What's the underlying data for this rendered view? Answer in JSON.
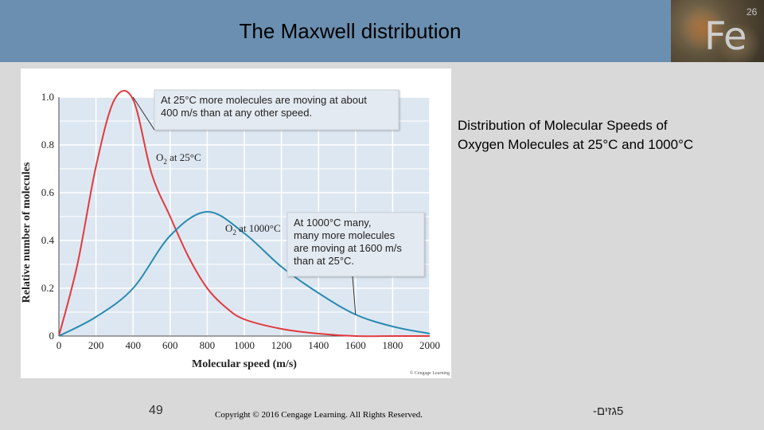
{
  "slide": {
    "title": "The Maxwell distribution",
    "caption_line1": "Distribution of Molecular Speeds of",
    "caption_line2": "Oxygen Molecules at 25°C and 1000°C",
    "page_number": "49",
    "copyright": "Copyright © 2016 Cengage Learning. All Rights Reserved.",
    "footer_hebrew": "5גזים-",
    "logo_symbol": "Fe",
    "logo_number": "26"
  },
  "colors": {
    "header": "#6a8fb0",
    "series_25": "#e03a3e",
    "series_1000": "#2a8ab0",
    "plot_bg": "#dde7f1",
    "grid": "#ffffff"
  },
  "chart_data": {
    "type": "line",
    "xlabel": "Molecular speed (m/s)",
    "ylabel": "Relative number of molecules",
    "xlim": [
      0,
      2000
    ],
    "ylim": [
      0,
      1.0
    ],
    "xticks": [
      "0",
      "200",
      "400",
      "600",
      "800",
      "1000",
      "1200",
      "1400",
      "1600",
      "1800",
      "2000"
    ],
    "yticks": [
      "0",
      "0.2",
      "0.4",
      "0.6",
      "0.8",
      "1.0"
    ],
    "grid": true,
    "credit": "© Cengage Learning",
    "series": [
      {
        "name_main": "O",
        "name_sub": "2",
        "name_rest": " at 25°C",
        "x": [
          0,
          100,
          200,
          300,
          400,
          500,
          600,
          700,
          800,
          900,
          1000,
          1200,
          1400,
          1600,
          1800,
          2000
        ],
        "y": [
          0,
          0.3,
          0.71,
          0.99,
          0.99,
          0.68,
          0.5,
          0.33,
          0.2,
          0.12,
          0.07,
          0.03,
          0.01,
          0,
          0,
          0
        ]
      },
      {
        "name_main": "O",
        "name_sub": "2",
        "name_rest": " at 1000°C",
        "x": [
          0,
          200,
          400,
          600,
          800,
          1000,
          1200,
          1400,
          1600,
          1800,
          2000
        ],
        "y": [
          0,
          0.08,
          0.2,
          0.42,
          0.52,
          0.43,
          0.29,
          0.18,
          0.09,
          0.04,
          0.01
        ]
      }
    ],
    "annotations": [
      {
        "lines": [
          "At 25°C more molecules are moving at about",
          "400 m/s than at any other speed."
        ],
        "points_to_x": 400,
        "points_to_y": 1.0
      },
      {
        "lines": [
          "At 1000°C many,",
          "many more molecules",
          "are moving at 1600 m/s",
          "than at 25°C."
        ],
        "points_to_x": 1600,
        "points_to_y": 0.09
      }
    ]
  }
}
